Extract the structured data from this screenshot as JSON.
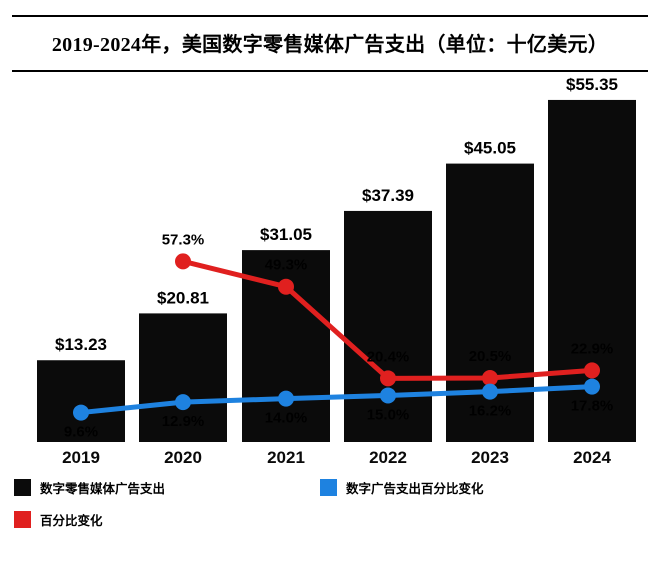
{
  "title": "2019-2024年，美国数字零售媒体广告支出（单位：十亿美元）",
  "colors": {
    "bars": "#0b0b0b",
    "line_pct_change": "#e0201f",
    "line_digital_pct": "#1e82e0"
  },
  "chart_data": {
    "type": "bar",
    "title": "2019-2024年，美国数字零售媒体广告支出（单位：十亿美元）",
    "categories": [
      "2019",
      "2020",
      "2021",
      "2022",
      "2023",
      "2024"
    ],
    "series": [
      {
        "name": "数字零售媒体广告支出",
        "type": "bar",
        "color_key": "bars",
        "values": [
          13.23,
          20.81,
          31.05,
          37.39,
          45.05,
          55.35
        ],
        "labels": [
          "$13.23",
          "$20.81",
          "$31.05",
          "$37.39",
          "$45.05",
          "$55.35"
        ]
      },
      {
        "name": "百分比变化",
        "type": "line",
        "color_key": "line_pct_change",
        "label_position": "above",
        "values": [
          null,
          57.3,
          49.3,
          20.4,
          20.5,
          22.9
        ],
        "labels": [
          "",
          "57.3%",
          "49.3%",
          "20.4%",
          "20.5%",
          "22.9%"
        ]
      },
      {
        "name": "数字广告支出百分比变化",
        "type": "line",
        "color_key": "line_digital_pct",
        "label_position": "below",
        "values": [
          9.6,
          12.9,
          14.0,
          15.0,
          16.2,
          17.8
        ],
        "labels": [
          "9.6%",
          "12.9%",
          "14.0%",
          "15.0%",
          "16.2%",
          "17.8%"
        ]
      }
    ],
    "ylim_bars": [
      0,
      60
    ],
    "ylim_pct": [
      0,
      65
    ],
    "grid": false,
    "legend_position": "bottom"
  },
  "legend": {
    "items": [
      {
        "label": "数字零售媒体广告支出",
        "color_key": "bars"
      },
      {
        "label": "数字广告支出百分比变化",
        "color_key": "line_digital_pct"
      },
      {
        "label": "百分比变化",
        "color_key": "line_pct_change"
      }
    ]
  }
}
